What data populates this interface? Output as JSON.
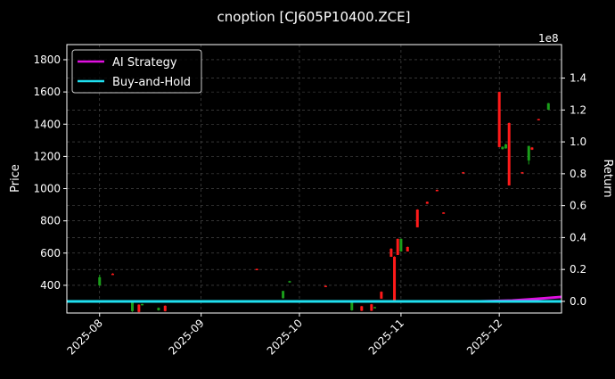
{
  "chart_data": {
    "type": "candlestick+line",
    "title": "cnoption [CJ605P10400.ZCE]",
    "ylabel": "Price",
    "y2label": "Return",
    "y2_scale_label": "1e8",
    "ylim": [
      228,
      1894
    ],
    "y2lim": [
      -0.073,
      1.61
    ],
    "xlim": [
      "2025-07-22",
      "2025-12-20"
    ],
    "grid": true,
    "legend_placement": "top-left",
    "x_ticks": [
      "2025-08",
      "2025-09",
      "2025-10",
      "2025-11",
      "2025-12"
    ],
    "x_tick_dates": [
      "2025-08-01",
      "2025-09-01",
      "2025-10-01",
      "2025-11-01",
      "2025-12-01"
    ],
    "y_ticks": [
      400,
      600,
      800,
      1000,
      1200,
      1400,
      1600,
      1800
    ],
    "y2_ticks": [
      "0.0",
      "0.2",
      "0.4",
      "0.6",
      "0.8",
      "1.0",
      "1.2",
      "1.4"
    ],
    "colors": {
      "up": "#1a9e1a",
      "down": "#ff1a1a",
      "ai_strategy": "#e010e0",
      "buy_and_hold": "#20e0f0",
      "grid": "#555555"
    },
    "candles": [
      {
        "date": "2025-08-01",
        "open": 400,
        "high": 466,
        "low": 395,
        "close": 450
      },
      {
        "date": "2025-08-05",
        "open": 472,
        "high": 475,
        "low": 466,
        "close": 468
      },
      {
        "date": "2025-08-11",
        "open": 240,
        "high": 300,
        "low": 235,
        "close": 300
      },
      {
        "date": "2025-08-13",
        "open": 280,
        "high": 282,
        "low": 232,
        "close": 235
      },
      {
        "date": "2025-08-14",
        "open": 278,
        "high": 285,
        "low": 276,
        "close": 284
      },
      {
        "date": "2025-08-19",
        "open": 245,
        "high": 262,
        "low": 243,
        "close": 260
      },
      {
        "date": "2025-08-21",
        "open": 273,
        "high": 275,
        "low": 238,
        "close": 240
      },
      {
        "date": "2025-09-18",
        "open": 502,
        "high": 503,
        "low": 497,
        "close": 498
      },
      {
        "date": "2025-09-26",
        "open": 320,
        "high": 365,
        "low": 318,
        "close": 365
      },
      {
        "date": "2025-09-28",
        "open": 418,
        "high": 428,
        "low": 416,
        "close": 426
      },
      {
        "date": "2025-10-09",
        "open": 397,
        "high": 398,
        "low": 392,
        "close": 393
      },
      {
        "date": "2025-10-17",
        "open": 245,
        "high": 300,
        "low": 242,
        "close": 300
      },
      {
        "date": "2025-10-20",
        "open": 270,
        "high": 272,
        "low": 240,
        "close": 242
      },
      {
        "date": "2025-10-23",
        "open": 282,
        "high": 284,
        "low": 240,
        "close": 242
      },
      {
        "date": "2025-10-24",
        "open": 262,
        "high": 266,
        "low": 260,
        "close": 265
      },
      {
        "date": "2025-10-26",
        "open": 360,
        "high": 362,
        "low": 317,
        "close": 317
      },
      {
        "date": "2025-10-29",
        "open": 627,
        "high": 630,
        "low": 577,
        "close": 577
      },
      {
        "date": "2025-10-30",
        "open": 577,
        "high": 580,
        "low": 300,
        "close": 300
      },
      {
        "date": "2025-10-31",
        "open": 688,
        "high": 690,
        "low": 588,
        "close": 588
      },
      {
        "date": "2025-11-01",
        "open": 610,
        "high": 690,
        "low": 608,
        "close": 688
      },
      {
        "date": "2025-11-03",
        "open": 638,
        "high": 640,
        "low": 610,
        "close": 610
      },
      {
        "date": "2025-11-06",
        "open": 870,
        "high": 872,
        "low": 760,
        "close": 760
      },
      {
        "date": "2025-11-09",
        "open": 918,
        "high": 920,
        "low": 905,
        "close": 906
      },
      {
        "date": "2025-11-12",
        "open": 992,
        "high": 994,
        "low": 988,
        "close": 989
      },
      {
        "date": "2025-11-14",
        "open": 852,
        "high": 853,
        "low": 848,
        "close": 849
      },
      {
        "date": "2025-11-20",
        "open": 1102,
        "high": 1103,
        "low": 1098,
        "close": 1099
      },
      {
        "date": "2025-12-01",
        "open": 1600,
        "high": 1602,
        "low": 1258,
        "close": 1258
      },
      {
        "date": "2025-12-02",
        "open": 1245,
        "high": 1262,
        "low": 1243,
        "close": 1260
      },
      {
        "date": "2025-12-03",
        "open": 1250,
        "high": 1278,
        "low": 1248,
        "close": 1275
      },
      {
        "date": "2025-12-04",
        "open": 1407,
        "high": 1410,
        "low": 1020,
        "close": 1020
      },
      {
        "date": "2025-12-08",
        "open": 1102,
        "high": 1103,
        "low": 1098,
        "close": 1099
      },
      {
        "date": "2025-12-10",
        "open": 1175,
        "high": 1265,
        "low": 1150,
        "close": 1265
      },
      {
        "date": "2025-12-11",
        "open": 1255,
        "high": 1258,
        "low": 1240,
        "close": 1242
      },
      {
        "date": "2025-12-13",
        "open": 1432,
        "high": 1433,
        "low": 1428,
        "close": 1429
      },
      {
        "date": "2025-12-16",
        "open": 1490,
        "high": 1532,
        "low": 1488,
        "close": 1530
      }
    ],
    "series": [
      {
        "name": "AI Strategy",
        "dates": [
          "2025-07-22",
          "2025-11-25",
          "2025-12-05",
          "2025-12-12",
          "2025-12-20"
        ],
        "values": [
          0.0,
          0.0,
          0.005,
          0.015,
          0.028
        ]
      },
      {
        "name": "Buy-and-Hold",
        "dates": [
          "2025-07-22",
          "2025-12-20"
        ],
        "values": [
          0.0,
          0.0
        ]
      }
    ]
  }
}
